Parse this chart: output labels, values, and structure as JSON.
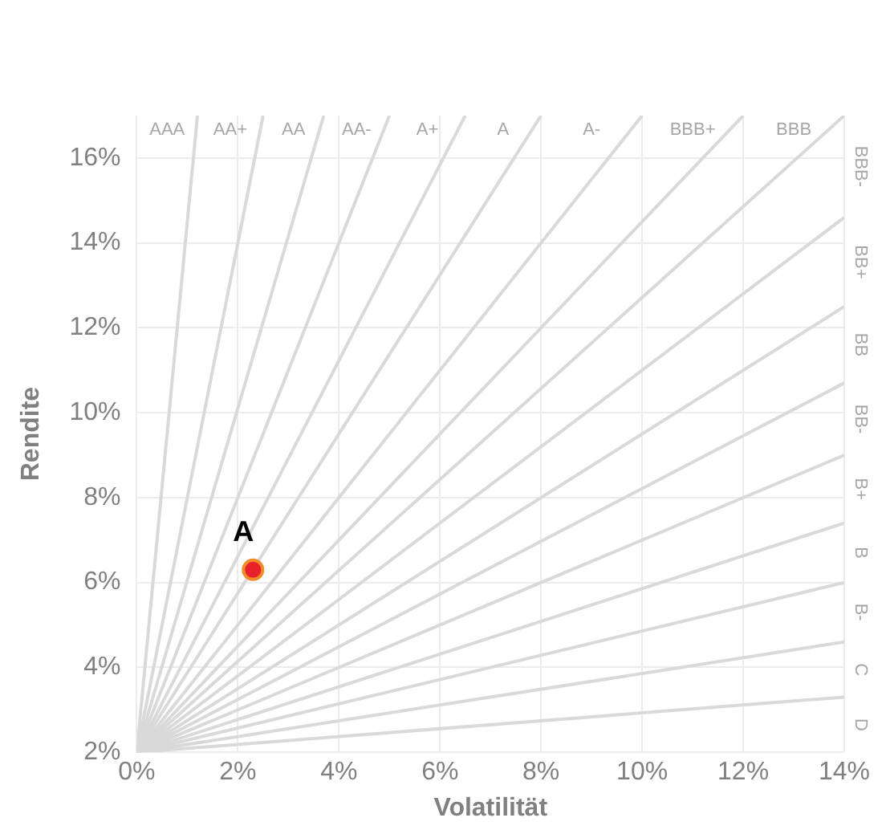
{
  "chart_data": {
    "type": "line",
    "xlabel": "Volatilität",
    "ylabel": "Rendite",
    "xlim": [
      0,
      14
    ],
    "ylim": [
      2,
      17
    ],
    "xticks": [
      {
        "value": 0,
        "label": "0%"
      },
      {
        "value": 2,
        "label": "2%"
      },
      {
        "value": 4,
        "label": "4%"
      },
      {
        "value": 6,
        "label": "6%"
      },
      {
        "value": 8,
        "label": "8%"
      },
      {
        "value": 10,
        "label": "10%"
      },
      {
        "value": 12,
        "label": "12%"
      },
      {
        "value": 14,
        "label": "14%"
      }
    ],
    "yticks": [
      {
        "value": 2,
        "label": "2%"
      },
      {
        "value": 4,
        "label": "4%"
      },
      {
        "value": 6,
        "label": "6%"
      },
      {
        "value": 8,
        "label": "8%"
      },
      {
        "value": 10,
        "label": "10%"
      },
      {
        "value": 12,
        "label": "12%"
      },
      {
        "value": 14,
        "label": "14%"
      },
      {
        "value": 16,
        "label": "16%"
      }
    ],
    "grid": true,
    "legend": false,
    "marker": "none",
    "line_style": "solid",
    "series": [
      {
        "type": "line",
        "color": "#d9d9d9",
        "x": [
          0,
          1.2
        ],
        "values": [
          2,
          17
        ]
      },
      {
        "type": "line",
        "color": "#d9d9d9",
        "x": [
          0,
          2.5
        ],
        "values": [
          2,
          17
        ]
      },
      {
        "type": "line",
        "color": "#d9d9d9",
        "x": [
          0,
          3.7
        ],
        "values": [
          2,
          17
        ]
      },
      {
        "type": "line",
        "color": "#d9d9d9",
        "x": [
          0,
          5
        ],
        "values": [
          2,
          17
        ]
      },
      {
        "type": "line",
        "color": "#d9d9d9",
        "x": [
          0,
          6.5
        ],
        "values": [
          2,
          17
        ]
      },
      {
        "type": "line",
        "color": "#d9d9d9",
        "x": [
          0,
          8
        ],
        "values": [
          2,
          17
        ]
      },
      {
        "type": "line",
        "color": "#d9d9d9",
        "x": [
          0,
          10
        ],
        "values": [
          2,
          17
        ]
      },
      {
        "type": "line",
        "color": "#d9d9d9",
        "x": [
          0,
          12
        ],
        "values": [
          2,
          17
        ]
      },
      {
        "type": "line",
        "color": "#d9d9d9",
        "x": [
          0,
          14
        ],
        "values": [
          2,
          17
        ]
      },
      {
        "type": "line",
        "color": "#d9d9d9",
        "x": [
          0,
          14
        ],
        "values": [
          2,
          14.6
        ]
      },
      {
        "type": "line",
        "color": "#d9d9d9",
        "x": [
          0,
          14
        ],
        "values": [
          2,
          12.5
        ]
      },
      {
        "type": "line",
        "color": "#d9d9d9",
        "x": [
          0,
          14
        ],
        "values": [
          2,
          10.7
        ]
      },
      {
        "type": "line",
        "color": "#d9d9d9",
        "x": [
          0,
          14
        ],
        "values": [
          2,
          9
        ]
      },
      {
        "type": "line",
        "color": "#d9d9d9",
        "x": [
          0,
          14
        ],
        "values": [
          2,
          7.4
        ]
      },
      {
        "type": "line",
        "color": "#d9d9d9",
        "x": [
          0,
          14
        ],
        "values": [
          2,
          6
        ]
      },
      {
        "type": "line",
        "color": "#d9d9d9",
        "x": [
          0,
          14
        ],
        "values": [
          2,
          4.6
        ]
      },
      {
        "type": "line",
        "color": "#d9d9d9",
        "x": [
          0,
          14
        ],
        "values": [
          2,
          3.3
        ]
      },
      {
        "type": "scatter",
        "name": "A",
        "color": "#e8212b",
        "marker": "circle",
        "x": [
          2.3
        ],
        "values": [
          6.3
        ]
      }
    ],
    "annotations": [
      "AAA",
      "AA+",
      "AA",
      "AA-",
      "A+",
      "A",
      "A-",
      "BBB+",
      "BBB",
      "BBB-",
      "BB+",
      "BB",
      "BB-",
      "B+",
      "B",
      "B-",
      "C",
      "D"
    ]
  }
}
